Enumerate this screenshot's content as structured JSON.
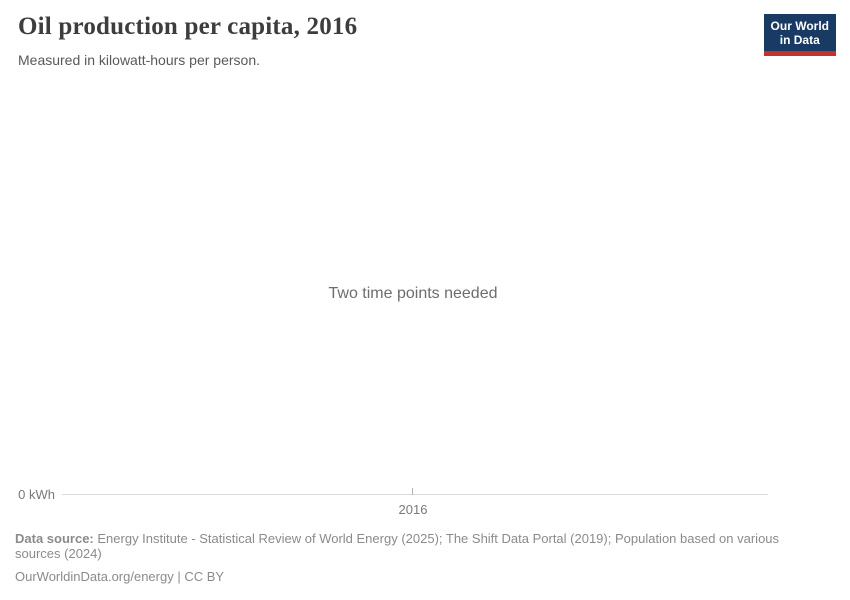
{
  "header": {
    "title": "Oil production per capita, 2016",
    "subtitle": "Measured in kilowatt-hours per person.",
    "logo": {
      "line1": "Our World",
      "line2": "in Data"
    }
  },
  "chart": {
    "empty_message": "Two time points needed",
    "y_axis_zero_label": "0 kWh",
    "x_tick_label": "2016"
  },
  "chart_data": {
    "type": "line",
    "title": "Oil production per capita, 2016",
    "subtitle": "Measured in kilowatt-hours per person.",
    "x": [
      "2016"
    ],
    "series": [],
    "y_start_label": "0 kWh",
    "empty_state_message": "Two time points needed",
    "legend_position": "none",
    "grid": false
  },
  "footer": {
    "data_source_label": "Data source:",
    "data_source_text": "Energy Institute - Statistical Review of World Energy (2025); The Shift Data Portal (2019); Population based on various sources (2024)",
    "citation": "OurWorldinData.org/energy | CC BY"
  },
  "colors": {
    "logo_bg": "#183a63",
    "logo_accent": "#c5312b",
    "title_color": "#3d3d3d",
    "subtitle_color": "#595959",
    "message_color": "#6d6d6d",
    "axis_text_color": "#7a7a7a",
    "axis_line_color": "#dbdbdb",
    "tick_color": "#b3b3b3",
    "footer_color": "#8b8b8b"
  }
}
